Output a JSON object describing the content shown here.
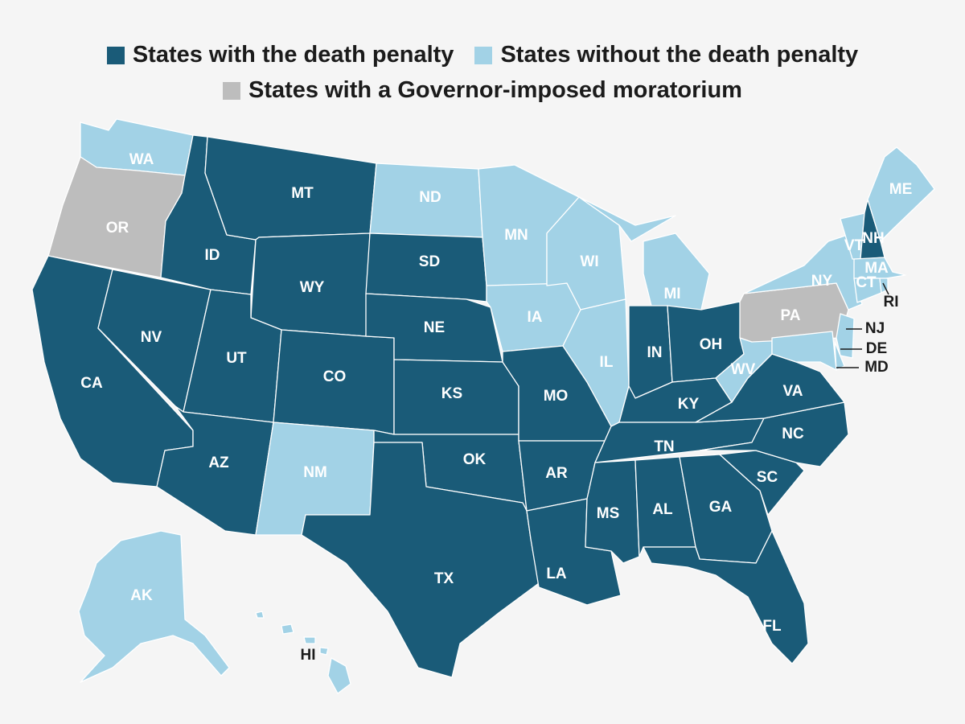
{
  "colors": {
    "with": "#1a5b78",
    "without": "#a2d2e6",
    "moratorium": "#bdbdbd",
    "background": "#f5f5f5",
    "border": "#ffffff",
    "outside_label": "#1b1b1b"
  },
  "legend": [
    {
      "key": "with",
      "label": "States with the death penalty"
    },
    {
      "key": "without",
      "label": "States without the death penalty"
    },
    {
      "key": "moratorium",
      "label": "States with a Governor-imposed moratorium"
    }
  ],
  "states": [
    {
      "code": "WA",
      "status": "without"
    },
    {
      "code": "OR",
      "status": "moratorium"
    },
    {
      "code": "CA",
      "status": "with"
    },
    {
      "code": "NV",
      "status": "with"
    },
    {
      "code": "ID",
      "status": "with"
    },
    {
      "code": "MT",
      "status": "with"
    },
    {
      "code": "WY",
      "status": "with"
    },
    {
      "code": "UT",
      "status": "with"
    },
    {
      "code": "CO",
      "status": "with"
    },
    {
      "code": "AZ",
      "status": "with"
    },
    {
      "code": "NM",
      "status": "without"
    },
    {
      "code": "ND",
      "status": "without"
    },
    {
      "code": "SD",
      "status": "with"
    },
    {
      "code": "NE",
      "status": "with"
    },
    {
      "code": "KS",
      "status": "with"
    },
    {
      "code": "OK",
      "status": "with"
    },
    {
      "code": "TX",
      "status": "with"
    },
    {
      "code": "MN",
      "status": "without"
    },
    {
      "code": "IA",
      "status": "without"
    },
    {
      "code": "MO",
      "status": "with"
    },
    {
      "code": "AR",
      "status": "with"
    },
    {
      "code": "LA",
      "status": "with"
    },
    {
      "code": "WI",
      "status": "without"
    },
    {
      "code": "IL",
      "status": "without"
    },
    {
      "code": "MI",
      "status": "without"
    },
    {
      "code": "IN",
      "status": "with"
    },
    {
      "code": "OH",
      "status": "with"
    },
    {
      "code": "KY",
      "status": "with"
    },
    {
      "code": "TN",
      "status": "with"
    },
    {
      "code": "MS",
      "status": "with"
    },
    {
      "code": "AL",
      "status": "with"
    },
    {
      "code": "GA",
      "status": "with"
    },
    {
      "code": "FL",
      "status": "with"
    },
    {
      "code": "SC",
      "status": "with"
    },
    {
      "code": "NC",
      "status": "with"
    },
    {
      "code": "VA",
      "status": "with"
    },
    {
      "code": "WV",
      "status": "without"
    },
    {
      "code": "PA",
      "status": "moratorium"
    },
    {
      "code": "NY",
      "status": "without"
    },
    {
      "code": "NJ",
      "status": "without"
    },
    {
      "code": "DE",
      "status": "without"
    },
    {
      "code": "MD",
      "status": "without"
    },
    {
      "code": "VT",
      "status": "without"
    },
    {
      "code": "NH",
      "status": "with"
    },
    {
      "code": "ME",
      "status": "without"
    },
    {
      "code": "MA",
      "status": "without"
    },
    {
      "code": "CT",
      "status": "without"
    },
    {
      "code": "RI",
      "status": "without"
    },
    {
      "code": "AK",
      "status": "without"
    },
    {
      "code": "HI",
      "status": "without"
    }
  ]
}
